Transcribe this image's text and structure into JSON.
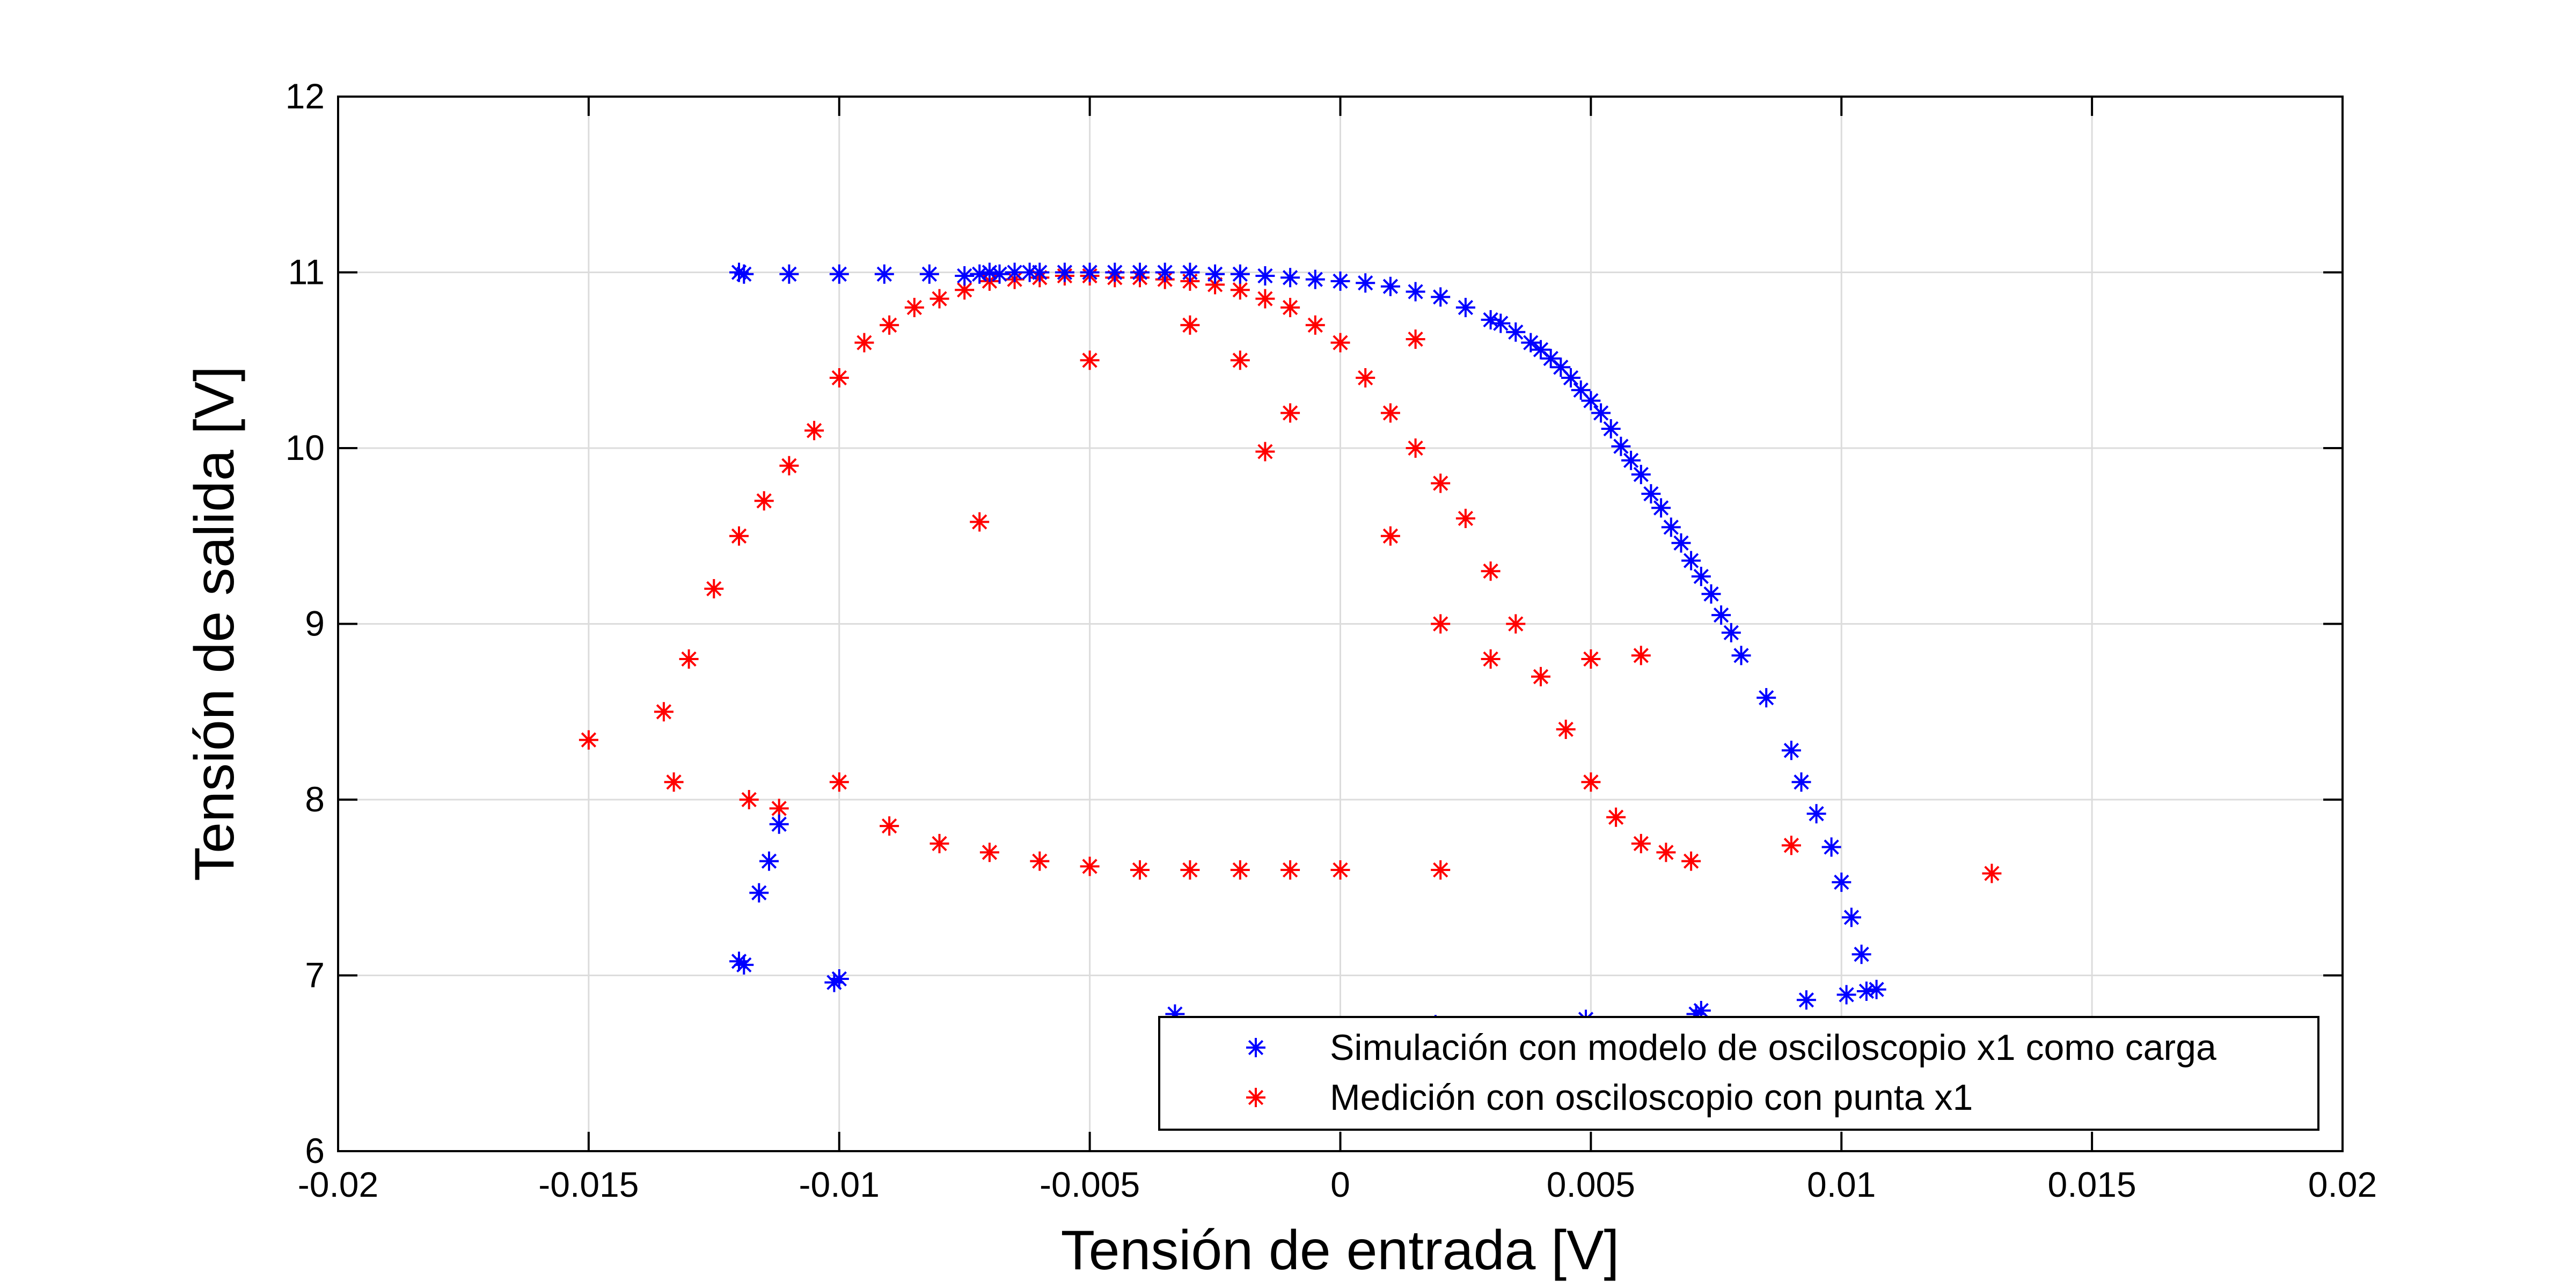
{
  "chart_data": {
    "type": "scatter",
    "xlabel": "Tensión de entrada [V]",
    "ylabel": "Tensión de salida [V]",
    "xlim": [
      -0.02,
      0.02
    ],
    "ylim": [
      6,
      12
    ],
    "xticks": [
      -0.02,
      -0.015,
      -0.01,
      -0.005,
      0,
      0.005,
      0.01,
      0.015,
      0.02
    ],
    "yticks": [
      6,
      7,
      8,
      9,
      10,
      11,
      12
    ],
    "xtick_labels": [
      "-0.02",
      "-0.015",
      "-0.01",
      "-0.005",
      "0",
      "0.005",
      "0.01",
      "0.015",
      "0.02"
    ],
    "ytick_labels": [
      "6",
      "7",
      "8",
      "9",
      "10",
      "11",
      "12"
    ],
    "grid": true,
    "legend_position": "bottom-right",
    "marker": "asterisk",
    "series": [
      {
        "name": "Simulación con modelo de osciloscopio x1 como carga",
        "color": "#0000ff",
        "points": [
          [
            -0.012,
            11.0
          ],
          [
            -0.0119,
            10.99
          ],
          [
            -0.011,
            10.99
          ],
          [
            -0.01,
            10.99
          ],
          [
            -0.0091,
            10.99
          ],
          [
            -0.0082,
            10.99
          ],
          [
            -0.0075,
            10.98
          ],
          [
            -0.0072,
            10.99
          ],
          [
            -0.007,
            11.0
          ],
          [
            -0.0068,
            10.99
          ],
          [
            -0.0065,
            11.0
          ],
          [
            -0.0062,
            11.0
          ],
          [
            -0.006,
            11.0
          ],
          [
            -0.0055,
            11.0
          ],
          [
            -0.005,
            11.0
          ],
          [
            -0.0045,
            11.0
          ],
          [
            -0.004,
            11.0
          ],
          [
            -0.0035,
            11.0
          ],
          [
            -0.003,
            11.0
          ],
          [
            -0.0025,
            10.99
          ],
          [
            -0.002,
            10.99
          ],
          [
            -0.0015,
            10.98
          ],
          [
            -0.001,
            10.97
          ],
          [
            -0.0005,
            10.96
          ],
          [
            0.0,
            10.95
          ],
          [
            0.0005,
            10.94
          ],
          [
            0.001,
            10.92
          ],
          [
            0.0015,
            10.89
          ],
          [
            0.002,
            10.86
          ],
          [
            0.0025,
            10.8
          ],
          [
            0.003,
            10.73
          ],
          [
            0.0032,
            10.71
          ],
          [
            0.0035,
            10.66
          ],
          [
            0.0038,
            10.6
          ],
          [
            0.004,
            10.56
          ],
          [
            0.0042,
            10.51
          ],
          [
            0.0044,
            10.46
          ],
          [
            0.0046,
            10.4
          ],
          [
            0.0048,
            10.33
          ],
          [
            0.005,
            10.27
          ],
          [
            0.0052,
            10.2
          ],
          [
            0.0054,
            10.11
          ],
          [
            0.0056,
            10.01
          ],
          [
            0.0058,
            9.93
          ],
          [
            0.006,
            9.85
          ],
          [
            0.0062,
            9.74
          ],
          [
            0.0064,
            9.66
          ],
          [
            0.0066,
            9.55
          ],
          [
            0.0068,
            9.46
          ],
          [
            0.007,
            9.36
          ],
          [
            0.0072,
            9.27
          ],
          [
            0.0074,
            9.17
          ],
          [
            0.0076,
            9.05
          ],
          [
            0.0078,
            8.95
          ],
          [
            0.008,
            8.82
          ],
          [
            0.0085,
            8.58
          ],
          [
            0.009,
            8.28
          ],
          [
            0.0092,
            8.1
          ],
          [
            0.0095,
            7.92
          ],
          [
            0.0098,
            7.73
          ],
          [
            0.01,
            7.53
          ],
          [
            0.0102,
            7.33
          ],
          [
            0.0104,
            7.12
          ],
          [
            0.0105,
            6.91
          ],
          [
            0.0107,
            6.92
          ],
          [
            0.0101,
            6.89
          ],
          [
            0.0093,
            6.86
          ],
          [
            0.0072,
            6.8
          ],
          [
            0.0071,
            6.78
          ],
          [
            0.0049,
            6.75
          ],
          [
            0.0019,
            6.72
          ],
          [
            -0.0033,
            6.78
          ],
          [
            -0.01,
            6.98
          ],
          [
            -0.0101,
            6.96
          ],
          [
            -0.012,
            7.08
          ],
          [
            -0.0119,
            7.06
          ],
          [
            -0.0116,
            7.47
          ],
          [
            -0.0114,
            7.65
          ],
          [
            -0.0112,
            7.86
          ]
        ]
      },
      {
        "name": "Medición con osciloscopio con punta x1",
        "color": "#ff0000",
        "points": [
          [
            -0.015,
            8.34
          ],
          [
            -0.0135,
            8.5
          ],
          [
            -0.0133,
            8.1
          ],
          [
            -0.013,
            8.8
          ],
          [
            -0.0125,
            9.2
          ],
          [
            -0.012,
            9.5
          ],
          [
            -0.0118,
            8.0
          ],
          [
            -0.0115,
            9.7
          ],
          [
            -0.0112,
            7.95
          ],
          [
            -0.011,
            9.9
          ],
          [
            -0.0105,
            10.1
          ],
          [
            -0.01,
            10.4
          ],
          [
            -0.0095,
            10.6
          ],
          [
            -0.009,
            10.7
          ],
          [
            -0.0085,
            10.8
          ],
          [
            -0.008,
            10.85
          ],
          [
            -0.0075,
            10.9
          ],
          [
            -0.007,
            10.95
          ],
          [
            -0.0065,
            10.96
          ],
          [
            -0.006,
            10.97
          ],
          [
            -0.0055,
            10.98
          ],
          [
            -0.005,
            10.98
          ],
          [
            -0.0045,
            10.97
          ],
          [
            -0.004,
            10.97
          ],
          [
            -0.0035,
            10.96
          ],
          [
            -0.003,
            10.95
          ],
          [
            -0.0025,
            10.93
          ],
          [
            -0.002,
            10.9
          ],
          [
            -0.0015,
            10.85
          ],
          [
            -0.001,
            10.8
          ],
          [
            -0.0005,
            10.7
          ],
          [
            0.0,
            10.6
          ],
          [
            0.0005,
            10.4
          ],
          [
            0.001,
            10.2
          ],
          [
            0.0015,
            10.0
          ],
          [
            0.002,
            9.8
          ],
          [
            0.0025,
            9.6
          ],
          [
            0.003,
            9.3
          ],
          [
            0.0035,
            9.0
          ],
          [
            0.004,
            8.7
          ],
          [
            0.0045,
            8.4
          ],
          [
            0.005,
            8.1
          ],
          [
            0.0055,
            7.9
          ],
          [
            0.006,
            7.75
          ],
          [
            0.0065,
            7.7
          ],
          [
            0.007,
            7.65
          ],
          [
            0.009,
            7.74
          ],
          [
            0.013,
            7.58
          ],
          [
            -0.01,
            8.1
          ],
          [
            -0.009,
            7.85
          ],
          [
            -0.008,
            7.75
          ],
          [
            -0.007,
            7.7
          ],
          [
            -0.006,
            7.65
          ],
          [
            -0.005,
            7.62
          ],
          [
            -0.004,
            7.6
          ],
          [
            -0.003,
            7.6
          ],
          [
            -0.002,
            7.6
          ],
          [
            -0.001,
            7.6
          ],
          [
            0.0,
            7.6
          ],
          [
            0.002,
            7.6
          ],
          [
            -0.005,
            10.5
          ],
          [
            -0.003,
            10.7
          ],
          [
            -0.002,
            10.5
          ],
          [
            -0.001,
            10.2
          ],
          [
            0.001,
            9.5
          ],
          [
            0.002,
            9.0
          ],
          [
            0.003,
            8.8
          ],
          [
            0.005,
            8.8
          ],
          [
            0.006,
            8.82
          ],
          [
            -0.0015,
            9.98
          ],
          [
            -0.0072,
            9.58
          ],
          [
            0.0015,
            10.62
          ]
        ]
      }
    ]
  }
}
